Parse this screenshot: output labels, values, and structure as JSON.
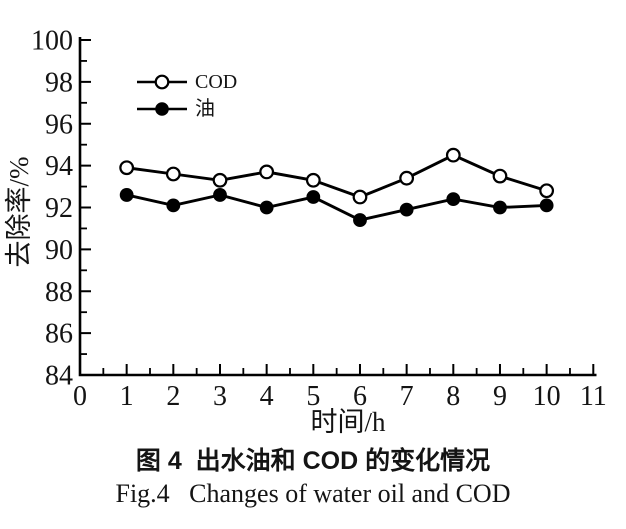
{
  "figure": {
    "background": "#ffffff",
    "ink_color": "#141414",
    "caption_zh": "图 4  出水油和 COD 的变化情况",
    "caption_en": "Fig.4   Changes of water oil and COD"
  },
  "legend": {
    "items": [
      {
        "label": "COD",
        "marker": "open-circle"
      },
      {
        "label": "油",
        "marker": "filled-circle"
      }
    ]
  },
  "chart_data": {
    "type": "line",
    "x": [
      1,
      2,
      3,
      4,
      5,
      6,
      7,
      8,
      9,
      10
    ],
    "series": [
      {
        "name": "COD",
        "marker": "open-circle",
        "color": "#000000",
        "values": [
          93.9,
          93.6,
          93.3,
          93.7,
          93.3,
          92.5,
          93.4,
          94.5,
          93.5,
          92.8
        ]
      },
      {
        "name": "油",
        "marker": "filled-circle",
        "color": "#000000",
        "values": [
          92.6,
          92.1,
          92.6,
          92.0,
          92.5,
          91.4,
          91.9,
          92.4,
          92.0,
          92.1
        ]
      }
    ],
    "title": "",
    "xlabel": "时间/h",
    "ylabel": "去除率/%",
    "xlim": [
      0,
      11
    ],
    "ylim": [
      84,
      100
    ],
    "x_major_ticks": [
      0,
      1,
      2,
      3,
      4,
      5,
      6,
      7,
      8,
      9,
      10,
      11
    ],
    "y_major_ticks": [
      84,
      86,
      88,
      90,
      92,
      94,
      96,
      98,
      100
    ],
    "x_minor_step": 0.5,
    "y_minor_step": 1,
    "grid": false,
    "frame": "L-shape",
    "legend_position": "upper-left-inside"
  }
}
